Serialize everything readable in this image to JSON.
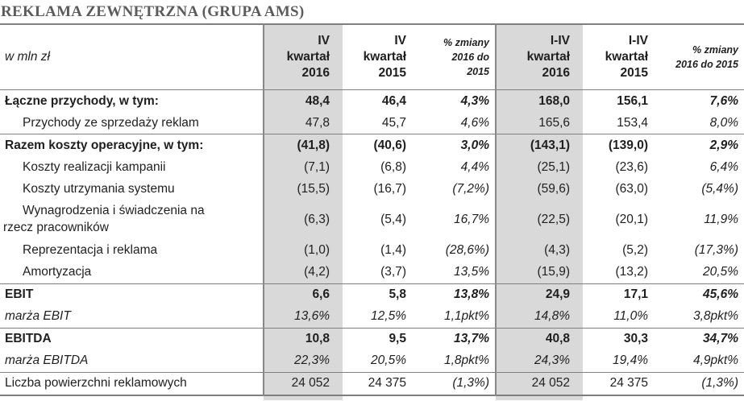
{
  "title": "REKLAMA ZEWNĘTRZNA (GRUPA AMS)",
  "colors": {
    "title_text": "#5b5b5b",
    "shaded_column": "#d9d9d9",
    "rule": "#7f7f7f",
    "body_text": "#1f1f1f"
  },
  "table": {
    "unit_label": "w mln zł",
    "columns": [
      {
        "label": "IV\nkwartał\n2016",
        "shaded": true,
        "pct": false,
        "vline": true
      },
      {
        "label": "IV\nkwartał\n2015",
        "shaded": false,
        "pct": false,
        "vline": false
      },
      {
        "label": "% zmiany\n2016 do\n2015",
        "shaded": false,
        "pct": true,
        "vline": false
      },
      {
        "label": "I-IV\nkwartał\n2016",
        "shaded": true,
        "pct": false,
        "vline": true
      },
      {
        "label": "I-IV\nkwartał\n2015",
        "shaded": false,
        "pct": false,
        "vline": false
      },
      {
        "label": "% zmiany\n2016 do 2015",
        "shaded": false,
        "pct": true,
        "vline": false
      }
    ],
    "rows": [
      {
        "label": "Łączne przychody, w tym:",
        "style": "bold",
        "indent": 0,
        "hang": false,
        "sep": false,
        "values": [
          "48,4",
          "46,4",
          "4,3%",
          "168,0",
          "156,1",
          "7,6%"
        ]
      },
      {
        "label": "Przychody ze sprzedaży reklam",
        "style": "normal",
        "indent": 1,
        "hang": false,
        "sep": false,
        "values": [
          "47,8",
          "45,7",
          "4,6%",
          "165,6",
          "153,4",
          "8,0%"
        ]
      },
      {
        "label": "Razem koszty operacyjne, w tym:",
        "style": "bold",
        "indent": 0,
        "hang": false,
        "sep": true,
        "values": [
          "(41,8)",
          "(40,6)",
          "3,0%",
          "(143,1)",
          "(139,0)",
          "2,9%"
        ]
      },
      {
        "label": "Koszty realizacji kampanii",
        "style": "normal",
        "indent": 1,
        "hang": false,
        "sep": false,
        "values": [
          "(7,1)",
          "(6,8)",
          "4,4%",
          "(25,1)",
          "(23,6)",
          "6,4%"
        ]
      },
      {
        "label": "Koszty utrzymania systemu",
        "style": "normal",
        "indent": 1,
        "hang": false,
        "sep": false,
        "values": [
          "(15,5)",
          "(16,7)",
          "(7,2%)",
          "(59,6)",
          "(63,0)",
          "(5,4%)"
        ]
      },
      {
        "label": "Wynagrodzenia i świadczenia na\nrzecz pracowników",
        "style": "normal",
        "indent": 0,
        "hang": true,
        "sep": false,
        "values": [
          "(6,3)",
          "(5,4)",
          "16,7%",
          "(22,5)",
          "(20,1)",
          "11,9%"
        ]
      },
      {
        "label": "Reprezentacja i reklama",
        "style": "normal",
        "indent": 1,
        "hang": false,
        "sep": false,
        "values": [
          "(1,0)",
          "(1,4)",
          "(28,6%)",
          "(4,3)",
          "(5,2)",
          "(17,3%)"
        ]
      },
      {
        "label": "Amortyzacja",
        "style": "normal",
        "indent": 1,
        "hang": false,
        "sep": false,
        "values": [
          "(4,2)",
          "(3,7)",
          "13,5%",
          "(15,9)",
          "(13,2)",
          "20,5%"
        ]
      },
      {
        "label": "EBIT",
        "style": "bold",
        "indent": 0,
        "hang": false,
        "sep": true,
        "values": [
          "6,6",
          "5,8",
          "13,8%",
          "24,9",
          "17,1",
          "45,6%"
        ]
      },
      {
        "label": "marża EBIT",
        "style": "italic",
        "indent": 0,
        "hang": false,
        "sep": false,
        "values": [
          "13,6%",
          "12,5%",
          "1,1pkt%",
          "14,8%",
          "11,0%",
          "3,8pkt%"
        ]
      },
      {
        "label": "EBITDA",
        "style": "bold",
        "indent": 0,
        "hang": false,
        "sep": true,
        "values": [
          "10,8",
          "9,5",
          "13,7%",
          "40,8",
          "30,3",
          "34,7%"
        ]
      },
      {
        "label": "marża EBITDA",
        "style": "italic",
        "indent": 0,
        "hang": false,
        "sep": false,
        "values": [
          "22,3%",
          "20,5%",
          "1,8pkt%",
          "24,3%",
          "19,4%",
          "4,9pkt%"
        ]
      },
      {
        "label": "Liczba powierzchni reklamowych",
        "style": "normal",
        "indent": 0,
        "hang": false,
        "sep": true,
        "values": [
          "24 052",
          "24 375",
          "(1,3%)",
          "24 052",
          "24 375",
          "(1,3%)"
        ]
      }
    ]
  }
}
